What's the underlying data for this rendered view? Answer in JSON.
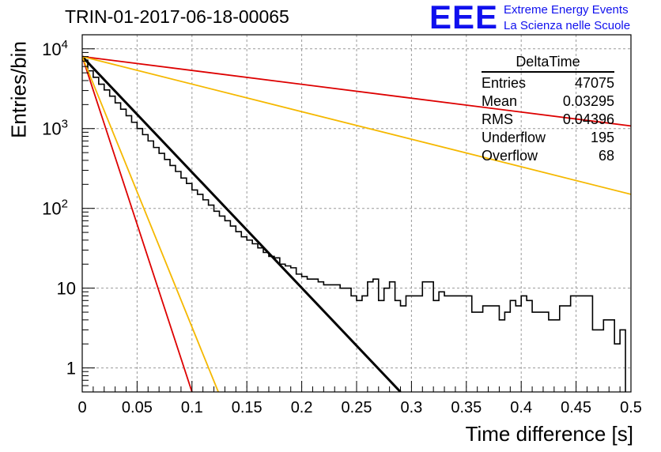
{
  "header": {
    "title": "TRIN-01-2017-06-18-00065",
    "logo_text": "EEE",
    "logo_line1": "Extreme Energy Events",
    "logo_line2": "La Scienza nelle Scuole"
  },
  "stats": {
    "name": "DeltaTime",
    "rows": [
      {
        "label": "Entries",
        "value": "47075"
      },
      {
        "label": "Mean",
        "value": "0.03295"
      },
      {
        "label": "RMS",
        "value": "0.04396"
      },
      {
        "label": "Underflow",
        "value": "195"
      },
      {
        "label": "Overflow",
        "value": "68"
      }
    ]
  },
  "colors": {
    "histogram": "#000000",
    "fit_black": "#000000",
    "red": "#dd0000",
    "yellow": "#f5b800",
    "logo": "#1010ee"
  },
  "chart_data": {
    "type": "line",
    "title": "TRIN-01-2017-06-18-00065",
    "xlabel": "Time difference [s]",
    "ylabel": "Entries/bin",
    "xlim": [
      0,
      0.5
    ],
    "ylim": [
      0.5,
      15000
    ],
    "yscale": "log",
    "grid": true,
    "xticks": [
      0,
      0.05,
      0.1,
      0.15,
      0.2,
      0.25,
      0.3,
      0.35,
      0.4,
      0.45,
      0.5
    ],
    "xtick_labels": [
      "0",
      "0.05",
      "0.1",
      "0.15",
      "0.2",
      "0.25",
      "0.3",
      "0.35",
      "0.4",
      "0.45",
      "0.5"
    ],
    "yticks": [
      1,
      10,
      100,
      1000,
      10000
    ],
    "ytick_labels": [
      "1",
      "10",
      "10^2",
      "10^3",
      "10^4"
    ],
    "histogram": {
      "bin_width": 0.005,
      "counts": [
        7200,
        5300,
        4400,
        3600,
        3050,
        2550,
        2100,
        1750,
        1450,
        1200,
        1000,
        840,
        700,
        580,
        490,
        410,
        345,
        290,
        240,
        205,
        170,
        150,
        128,
        110,
        92,
        80,
        70,
        60,
        51,
        44,
        40,
        36,
        32,
        28,
        25,
        24,
        20,
        19,
        18,
        15,
        14,
        13,
        13,
        12,
        11,
        11,
        11,
        10,
        10,
        8,
        7,
        8,
        12,
        13,
        7,
        10,
        12,
        7,
        6,
        8,
        8,
        8,
        12,
        12,
        7,
        9,
        8,
        8,
        8,
        8,
        8,
        5,
        5,
        6,
        6,
        6,
        4,
        5,
        7,
        6,
        8,
        7,
        5,
        5,
        5,
        4,
        4,
        6,
        6,
        8,
        8,
        8,
        8,
        3,
        3,
        4,
        4,
        2,
        3
      ]
    },
    "series": [
      {
        "type": "exp",
        "color": "#000000",
        "points": [
          [
            0,
            8000
          ],
          [
            0.29,
            0.5
          ]
        ]
      },
      {
        "type": "exp",
        "color": "#dd0000",
        "points": [
          [
            0,
            8000
          ],
          [
            0.5,
            1080
          ]
        ]
      },
      {
        "type": "exp",
        "color": "#f5b800",
        "points": [
          [
            0,
            8000
          ],
          [
            0.5,
            150
          ]
        ]
      },
      {
        "type": "exp",
        "color": "#dd0000",
        "points": [
          [
            0,
            8000
          ],
          [
            0.1,
            0.5
          ]
        ]
      },
      {
        "type": "exp",
        "color": "#f5b800",
        "points": [
          [
            0,
            8000
          ],
          [
            0.124,
            0.5
          ]
        ]
      }
    ]
  }
}
